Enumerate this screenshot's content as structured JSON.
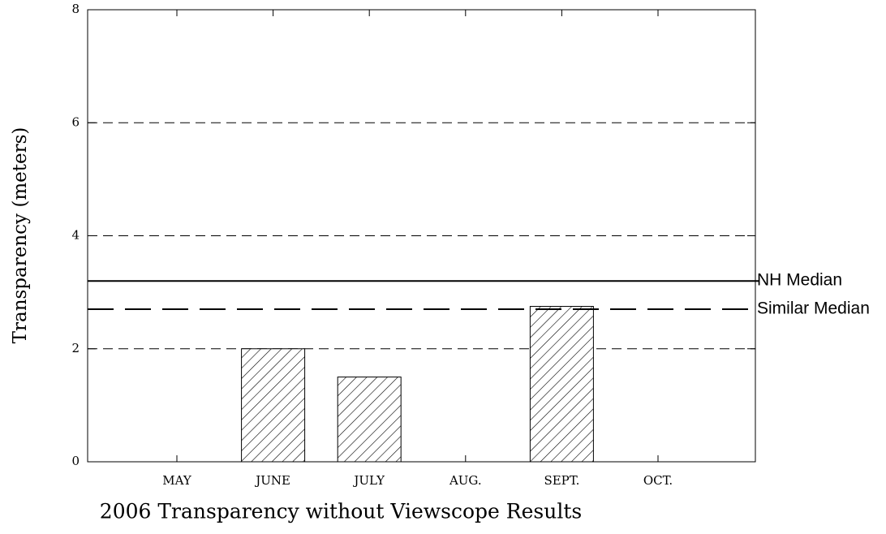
{
  "chart_data": {
    "type": "bar",
    "title": "2006 Transparency without Viewscope Results",
    "y_label": "Transparency (meters)",
    "categories": [
      "MAY",
      "JUNE",
      "JULY",
      "AUG.",
      "SEPT.",
      "OCT."
    ],
    "values": [
      null,
      2.0,
      1.5,
      null,
      2.75,
      null
    ],
    "color": "#000000",
    "ylim": [
      0,
      8
    ],
    "yticks": [
      0,
      2,
      4,
      6,
      8
    ],
    "grid": true,
    "reference_lines": [
      {
        "name": "NH Median",
        "value": 3.2,
        "style": "solid"
      },
      {
        "name": "Similar Median",
        "value": 2.7,
        "style": "dashed"
      }
    ]
  }
}
